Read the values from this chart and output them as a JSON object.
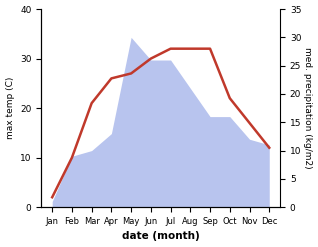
{
  "months": [
    "Jan",
    "Feb",
    "Mar",
    "Apr",
    "May",
    "Jun",
    "Jul",
    "Aug",
    "Sep",
    "Oct",
    "Nov",
    "Dec"
  ],
  "temperature": [
    2,
    10,
    21,
    26,
    27,
    30,
    32,
    32,
    32,
    22,
    17,
    12
  ],
  "precipitation": [
    1,
    9,
    10,
    13,
    30,
    26,
    26,
    21,
    16,
    16,
    12,
    11
  ],
  "temp_color": "#c0392b",
  "precip_fill_color": "#b8c4ee",
  "temp_ylim": [
    0,
    40
  ],
  "precip_ylim": [
    0,
    35
  ],
  "temp_yticks": [
    0,
    10,
    20,
    30,
    40
  ],
  "precip_yticks": [
    0,
    5,
    10,
    15,
    20,
    25,
    30,
    35
  ],
  "ylabel_left": "max temp (C)",
  "ylabel_right": "med. precipitation (kg/m2)",
  "xlabel": "date (month)",
  "figsize": [
    3.18,
    2.47
  ],
  "dpi": 100
}
